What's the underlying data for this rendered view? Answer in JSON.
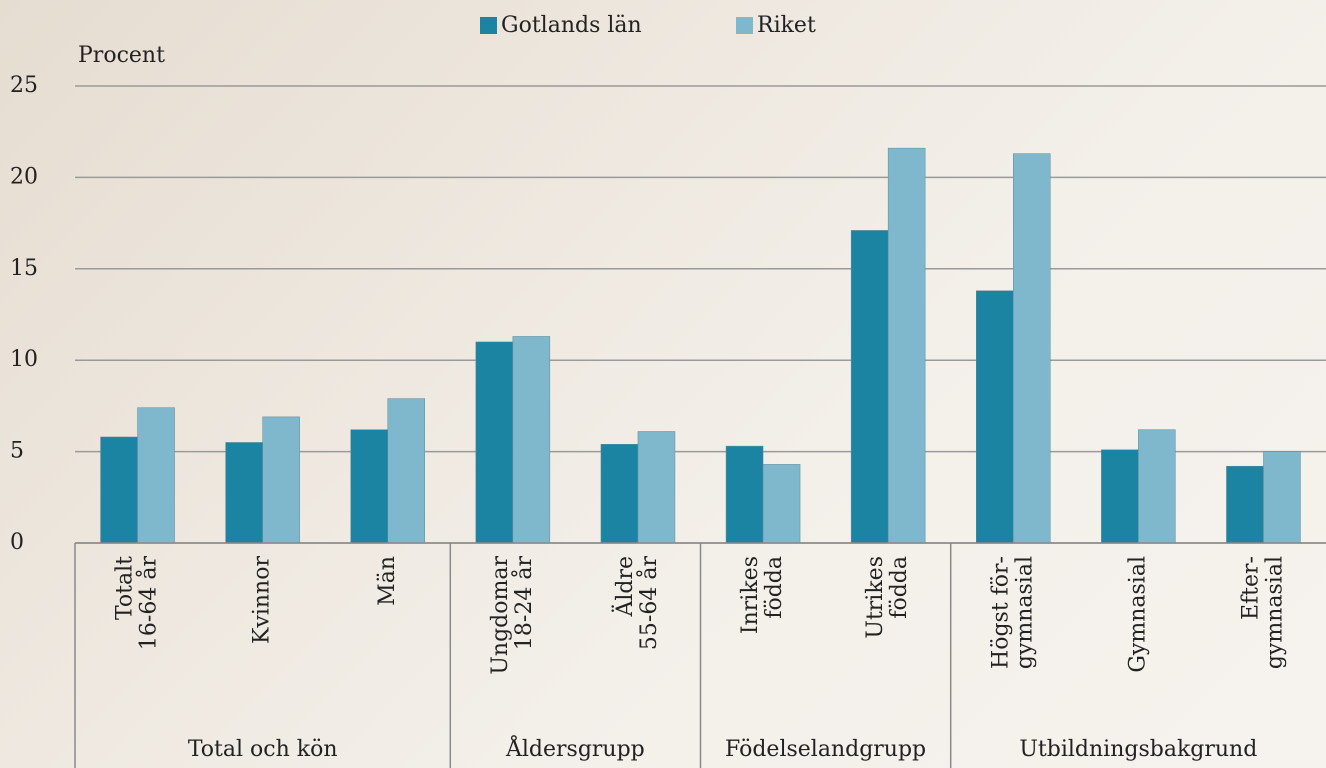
{
  "chart_data": {
    "type": "bar",
    "y_axis_label": "Procent",
    "groups": [
      {
        "label": "Total och kön",
        "categories": [
          [
            "Totalt",
            "16-64 år"
          ],
          [
            "Kvinnor"
          ],
          [
            "Män"
          ]
        ]
      },
      {
        "label": "Åldersgrupp",
        "categories": [
          [
            "Ungdomar",
            "18-24 år"
          ],
          [
            "Äldre",
            "55-64 år"
          ]
        ]
      },
      {
        "label": "Födelselandgrupp",
        "categories": [
          [
            "Inrikes",
            "födda"
          ],
          [
            "Utrikes",
            "födda"
          ]
        ]
      },
      {
        "label": "Utbildningsbakgrund",
        "categories": [
          [
            "Högst för-",
            "gymnasial"
          ],
          [
            "Gymnasial"
          ],
          [
            "Efter-",
            "gymnasial"
          ]
        ]
      }
    ],
    "series": [
      {
        "name": "Gotlands län",
        "color": "#1b84a3",
        "values": [
          5.8,
          5.5,
          6.2,
          11.0,
          5.4,
          5.3,
          17.1,
          13.8,
          5.1,
          4.2
        ]
      },
      {
        "name": "Riket",
        "color": "#7fb8cc",
        "values": [
          7.4,
          6.9,
          7.9,
          11.3,
          6.1,
          4.3,
          21.6,
          21.3,
          6.2,
          5.0
        ]
      }
    ],
    "ylim": [
      0,
      25
    ],
    "yticks": [
      0,
      5,
      10,
      15,
      20,
      25
    ],
    "grid": true,
    "legend": "top"
  }
}
